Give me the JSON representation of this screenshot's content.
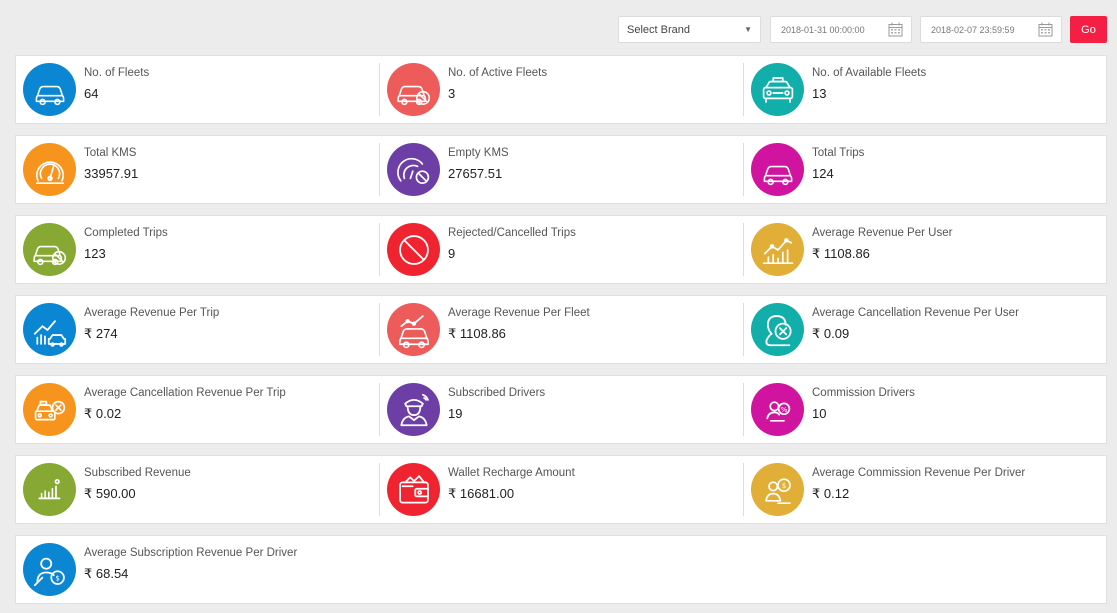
{
  "filters": {
    "brand_select": "Select Brand",
    "start_date": "2018-01-31 00:00:00",
    "end_date": "2018-02-07 23:59:59",
    "go_label": "Go"
  },
  "colors": {
    "blue": "#0b86d3",
    "coral": "#ee5b5b",
    "teal": "#12aeaa",
    "orange": "#f7941d",
    "purple": "#6d3ea6",
    "magenta": "#d1149f",
    "olive": "#87a833",
    "red": "#f02330",
    "gold": "#e1ae38",
    "go_button": "#f51f45"
  },
  "stats": [
    {
      "label": "No. of Fleets",
      "value": "64",
      "color": "#0b86d3",
      "icon": "car-icon"
    },
    {
      "label": "No. of Active Fleets",
      "value": "3",
      "color": "#ee5b5b",
      "icon": "car-blocked-icon"
    },
    {
      "label": "No. of Available Fleets",
      "value": "13",
      "color": "#12aeaa",
      "icon": "taxi-icon"
    },
    {
      "label": "Total KMS",
      "value": "33957.91",
      "color": "#f7941d",
      "icon": "speedometer-icon"
    },
    {
      "label": "Empty KMS",
      "value": "27657.51",
      "color": "#6d3ea6",
      "icon": "speedometer-blocked-icon"
    },
    {
      "label": "Total Trips",
      "value": "124",
      "color": "#d1149f",
      "icon": "car-icon"
    },
    {
      "label": "Completed Trips",
      "value": "123",
      "color": "#87a833",
      "icon": "car-blocked-icon"
    },
    {
      "label": "Rejected/Cancelled Trips",
      "value": "9",
      "color": "#f02330",
      "icon": "blocked-icon"
    },
    {
      "label": "Average Revenue Per User",
      "value": "₹ 1108.86",
      "color": "#e1ae38",
      "icon": "growth-chart-icon"
    },
    {
      "label": "Average Revenue Per Trip",
      "value": "₹ 274",
      "color": "#0b86d3",
      "icon": "growth-chart-car-icon"
    },
    {
      "label": "Average Revenue Per Fleet",
      "value": "₹ 1108.86",
      "color": "#ee5b5b",
      "icon": "car-trend-icon"
    },
    {
      "label": "Average Cancellation Revenue Per User",
      "value": "₹ 0.09",
      "color": "#12aeaa",
      "icon": "user-cancel-icon"
    },
    {
      "label": "Average Cancellation Revenue Per Trip",
      "value": "₹ 0.02",
      "color": "#f7941d",
      "icon": "taxi-cancel-icon"
    },
    {
      "label": "Subscribed Drivers",
      "value": "19",
      "color": "#6d3ea6",
      "icon": "driver-icon"
    },
    {
      "label": "Commission Drivers",
      "value": "10",
      "color": "#d1149f",
      "icon": "commission-driver-icon"
    },
    {
      "label": "Subscribed Revenue",
      "value": "₹ 590.00",
      "color": "#87a833",
      "icon": "bar-chart-icon"
    },
    {
      "label": "Wallet Recharge Amount",
      "value": "₹ 16681.00",
      "color": "#f02330",
      "icon": "wallet-icon"
    },
    {
      "label": "Average Commission Revenue Per Driver",
      "value": "₹ 0.12",
      "color": "#e1ae38",
      "icon": "driver-money-icon"
    },
    {
      "label": "Average Subscription Revenue Per Driver",
      "value": "₹ 68.54",
      "color": "#0b86d3",
      "icon": "driver-subscription-icon"
    }
  ]
}
